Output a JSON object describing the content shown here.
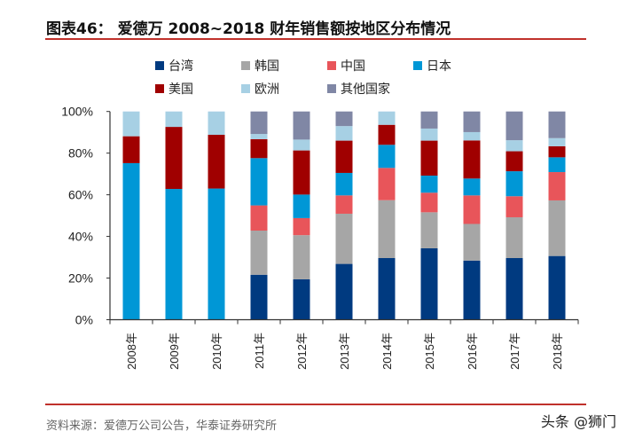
{
  "chart_data": {
    "type": "bar",
    "stacked": true,
    "title": "图表46：  爱德万 2008~2018 财年销售额按地区分布情况",
    "xlabel": "",
    "ylabel": "",
    "ylim": [
      0,
      100
    ],
    "yticks": [
      "0%",
      "20%",
      "40%",
      "60%",
      "80%",
      "100%"
    ],
    "grid": false,
    "legend_position": "top",
    "categories": [
      "2008年",
      "2009年",
      "2010年",
      "2011年",
      "2012年",
      "2013年",
      "2014年",
      "2015年",
      "2016年",
      "2017年",
      "2018年"
    ],
    "series": [
      {
        "name": "台湾",
        "color": "#003a80",
        "values": [
          0,
          0,
          0,
          21.6,
          19.4,
          26.8,
          29.6,
          34.3,
          28.4,
          29.6,
          30.6
        ]
      },
      {
        "name": "韩国",
        "color": "#a6a6a6",
        "values": [
          0,
          0,
          0,
          21.2,
          21.2,
          24.1,
          27.8,
          17.3,
          17.6,
          19.6,
          26.7
        ]
      },
      {
        "name": "中国",
        "color": "#e8555a",
        "values": [
          0,
          0,
          0,
          12.1,
          8.2,
          8.8,
          15.5,
          9.4,
          13.7,
          10.1,
          13.6
        ]
      },
      {
        "name": "日本",
        "color": "#0097d6",
        "values": [
          75.2,
          62.8,
          63.0,
          22.7,
          11.3,
          10.8,
          11.1,
          8.2,
          8.1,
          12.0,
          7.1
        ]
      },
      {
        "name": "美国",
        "color": "#a00000",
        "values": [
          12.9,
          29.8,
          25.8,
          9.1,
          21.2,
          15.5,
          9.6,
          16.8,
          18.3,
          9.6,
          5.3
        ]
      },
      {
        "name": "欧洲",
        "color": "#a7d0e4",
        "values": [
          11.9,
          7.4,
          11.2,
          2.5,
          5.2,
          7.0,
          6.4,
          5.8,
          4.0,
          5.3,
          3.9
        ]
      },
      {
        "name": "其他国家",
        "color": "#8087a5",
        "values": [
          0,
          0,
          0,
          10.8,
          13.5,
          7.0,
          0,
          8.2,
          9.9,
          13.8,
          12.8
        ]
      }
    ]
  },
  "footer": {
    "source": "资料来源：爱德万公司公告，华泰证券研究所",
    "watermark": "头条 @狮门"
  },
  "colors": {
    "rule": "#c0312b"
  }
}
